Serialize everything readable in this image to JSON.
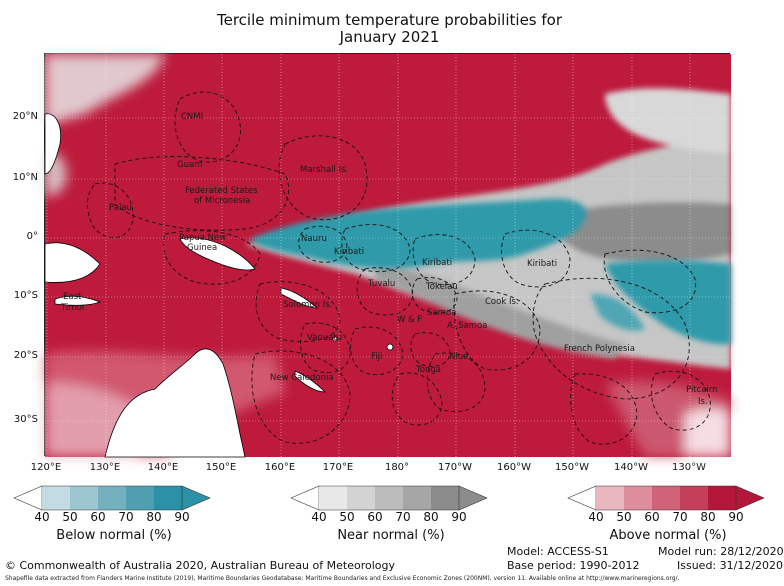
{
  "title": [
    "Tercile minimum temperature probabilities for",
    "January 2021"
  ],
  "map": {
    "lat_ticks": [
      "20°N",
      "10°N",
      "0°",
      "10°S",
      "20°S",
      "30°S"
    ],
    "lon_ticks": [
      "120°E",
      "130°E",
      "140°E",
      "150°E",
      "160°E",
      "170°E",
      "180°",
      "170°W",
      "160°W",
      "150°W",
      "140°W",
      "130°W"
    ],
    "regions": [
      "CNMI",
      "Guam",
      "Marshall Is.",
      "Federated States",
      "of Micronesia",
      "Palau",
      "Papua New",
      "Guinea",
      "Nauru",
      "Kiribati",
      "Kiribati",
      "Kiribati",
      "Tuvalu",
      "Tokelau",
      "East",
      "Timor",
      "Solomon Is.",
      "W & F",
      "Samoa",
      "A. Samoa",
      "Cook Is.",
      "Vanuatu",
      "Fiji",
      "Niue",
      "Tonga",
      "New Caledonia",
      "French Polynesia",
      "Pitcairn",
      "Is."
    ],
    "colors": {
      "above": "#bd1a3c",
      "near": "#8c8c8c",
      "below": "#2f9aaa",
      "land": "#ffffff",
      "coast": "#000000"
    }
  },
  "legend": {
    "ticks": [
      "40",
      "50",
      "60",
      "70",
      "80",
      "90"
    ],
    "below": {
      "label": "Below normal (%)",
      "colors": [
        "#ffffff",
        "#c3dbe2",
        "#9cc6d0",
        "#74b1bf",
        "#4f9fb1",
        "#2b91a6"
      ]
    },
    "near": {
      "label": "Near normal (%)",
      "colors": [
        "#ffffff",
        "#e8e8e8",
        "#d3d3d3",
        "#bcbcbc",
        "#a6a6a6",
        "#8c8c8c"
      ]
    },
    "above": {
      "label": "Above normal (%)",
      "colors": [
        "#ffffff",
        "#e9b7c0",
        "#dd8d9b",
        "#cf6378",
        "#c43f59",
        "#b5173a"
      ]
    }
  },
  "footer": {
    "copyright": "© Commonwealth of Australia 2020, Australian Bureau of Meteorology",
    "model": "Model: ACCESS-S1",
    "model_run": "Model run: 28/12/2020",
    "base_period": "Base period: 1990-2012",
    "issued": "Issued: 31/12/2020",
    "shapefile": "Shapefile data extracted from Flanders Marine Institute (2019), Maritime Boundaries Geodatabase: Maritime Boundaries and Exclusive Economic Zones (200NM), version 11. Available online at http://www.marineregions.org/."
  }
}
